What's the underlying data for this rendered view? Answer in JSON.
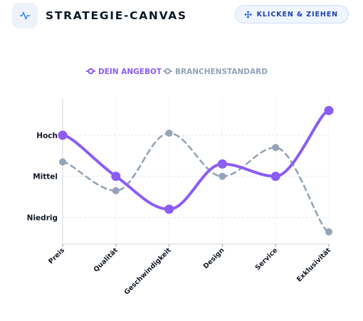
{
  "header": {
    "title": "STRATEGIE-CANVAS",
    "drag_button_label": "KLICKEN & ZIEHEN",
    "logo_icon": "activity-icon",
    "drag_icon": "move-icon"
  },
  "colors": {
    "primary": "#8b5cf6",
    "secondary": "#94a3b8"
  },
  "chart_data": {
    "type": "line",
    "title": "",
    "categories": [
      "Preis",
      "Qualität",
      "Geschwindigkeit",
      "Design",
      "Service",
      "Exklusivität"
    ],
    "y_ticks": [
      {
        "value": 1,
        "label": "Niedrig"
      },
      {
        "value": 2,
        "label": "Mittel"
      },
      {
        "value": 3,
        "label": "Hoch"
      }
    ],
    "ylim": [
      0.35,
      3.9
    ],
    "series": [
      {
        "name": "DEIN ANGEBOT",
        "values": [
          3.0,
          2.0,
          1.2,
          2.3,
          2.0,
          3.6
        ],
        "color": "#8b5cf6",
        "style": "solid"
      },
      {
        "name": "BRANCHENSTANDARD",
        "values": [
          2.35,
          1.65,
          3.05,
          2.0,
          2.7,
          0.65
        ],
        "color": "#94a3b8",
        "style": "dashed"
      }
    ],
    "legend_position": "top-center",
    "grid": true
  }
}
